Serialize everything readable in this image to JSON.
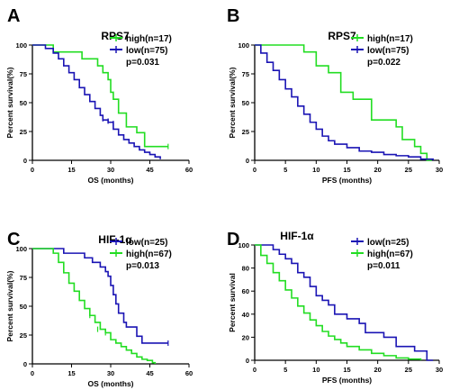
{
  "chart_data": [
    {
      "type": "line",
      "panel": "A",
      "title": "RPS7",
      "xlabel": "OS (months)",
      "ylabel": "Percent survival(%)",
      "xlim": [
        0,
        60
      ],
      "ylim": [
        0,
        100
      ],
      "xticks": [
        0,
        15,
        30,
        45,
        60
      ],
      "yticks": [
        0,
        25,
        50,
        75,
        100
      ],
      "legend": "top-right",
      "pvalue": "p=0.031",
      "series": [
        {
          "name": "high(n=17)",
          "color": "#22dd22",
          "x": [
            0,
            8,
            8,
            19,
            19,
            25,
            25,
            27,
            27,
            29,
            29,
            30,
            30,
            31,
            31,
            33,
            33,
            36,
            36,
            40,
            40,
            43,
            43,
            52
          ],
          "y": [
            100,
            100,
            94,
            94,
            88,
            88,
            82,
            82,
            76,
            76,
            70,
            70,
            59,
            59,
            53,
            53,
            41,
            41,
            29,
            29,
            24,
            24,
            12,
            12
          ],
          "censored": [
            [
              52,
              12
            ]
          ]
        },
        {
          "name": "low(n=75)",
          "color": "#1a14b4",
          "x": [
            0,
            5,
            8,
            10,
            12,
            14,
            16,
            18,
            20,
            22,
            24,
            26,
            27,
            29,
            31,
            33,
            35,
            37,
            39,
            41,
            43,
            45,
            47,
            49
          ],
          "y": [
            100,
            97,
            93,
            88,
            82,
            76,
            70,
            63,
            57,
            51,
            45,
            39,
            35,
            33,
            27,
            22,
            18,
            15,
            12,
            9,
            7,
            5,
            3,
            1
          ],
          "censored": [
            [
              27,
              36
            ],
            [
              29,
              34
            ],
            [
              31,
              32
            ]
          ]
        }
      ]
    },
    {
      "type": "line",
      "panel": "B",
      "title": "RPS7",
      "xlabel": "PFS (months)",
      "ylabel": "Percent survival(%)",
      "xlim": [
        0,
        30
      ],
      "ylim": [
        0,
        100
      ],
      "xticks": [
        0,
        5,
        10,
        15,
        20,
        25,
        30
      ],
      "yticks": [
        0,
        25,
        50,
        75,
        100
      ],
      "legend": "top-right",
      "pvalue": "p=0.022",
      "series": [
        {
          "name": "high(n=17)",
          "color": "#22dd22",
          "x": [
            0,
            8,
            8,
            10,
            10,
            12,
            12,
            14,
            14,
            16,
            16,
            19,
            19,
            23,
            23,
            24,
            24,
            26,
            26,
            27,
            27,
            28,
            28,
            28.8
          ],
          "y": [
            100,
            100,
            94,
            94,
            82,
            82,
            76,
            76,
            59,
            59,
            53,
            53,
            35,
            35,
            29,
            29,
            18,
            18,
            12,
            12,
            6,
            6,
            0,
            0
          ],
          "censored": []
        },
        {
          "name": "low(n=75)",
          "color": "#1a14b4",
          "x": [
            0,
            1,
            2,
            3,
            4,
            5,
            6,
            7,
            8,
            9,
            10,
            11,
            12,
            13,
            15,
            17,
            19,
            21,
            23,
            25,
            27,
            29
          ],
          "y": [
            100,
            93,
            85,
            78,
            70,
            62,
            55,
            47,
            40,
            33,
            27,
            21,
            17,
            14,
            11,
            8,
            7,
            5,
            4,
            3,
            1,
            0
          ],
          "censored": []
        }
      ]
    },
    {
      "type": "line",
      "panel": "C",
      "title": "HIF-1α",
      "xlabel": "OS (months)",
      "ylabel": "Percent survival(%)",
      "xlim": [
        0,
        60
      ],
      "ylim": [
        0,
        100
      ],
      "xticks": [
        0,
        15,
        30,
        45,
        60
      ],
      "yticks": [
        0,
        25,
        50,
        75,
        100
      ],
      "legend": "top-right",
      "pvalue": "p=0.013",
      "series": [
        {
          "name": "low(n=25)",
          "color": "#1a14b4",
          "x": [
            0,
            12,
            12,
            20,
            20,
            23,
            23,
            26,
            26,
            28,
            28,
            29,
            29,
            30,
            30,
            31,
            31,
            32,
            32,
            33,
            33,
            35,
            35,
            36,
            36,
            40,
            40,
            42,
            42,
            52
          ],
          "y": [
            100,
            100,
            96,
            96,
            92,
            92,
            88,
            88,
            84,
            84,
            80,
            80,
            76,
            76,
            68,
            68,
            60,
            60,
            52,
            52,
            44,
            44,
            36,
            36,
            32,
            32,
            24,
            24,
            18,
            18
          ],
          "censored": [
            [
              52,
              18
            ]
          ]
        },
        {
          "name": "high(n=67)",
          "color": "#22dd22",
          "x": [
            0,
            8,
            10,
            12,
            14,
            16,
            18,
            20,
            22,
            24,
            26,
            28,
            30,
            32,
            34,
            36,
            38,
            40,
            42,
            44,
            46,
            47
          ],
          "y": [
            100,
            96,
            88,
            79,
            70,
            63,
            55,
            48,
            42,
            36,
            30,
            27,
            21,
            18,
            15,
            12,
            9,
            6,
            4,
            3,
            1,
            0
          ],
          "censored": [
            [
              22,
              42
            ],
            [
              25,
              30
            ],
            [
              28,
              27
            ]
          ]
        }
      ]
    },
    {
      "type": "line",
      "panel": "D",
      "title": "HIF-1α",
      "xlabel": "PFS (months)",
      "ylabel": "Percent survival",
      "xlim": [
        0,
        30
      ],
      "ylim": [
        0,
        100
      ],
      "xticks": [
        0,
        5,
        10,
        15,
        20,
        25,
        30
      ],
      "yticks": [
        0,
        20,
        40,
        60,
        80,
        100
      ],
      "legend": "top-right",
      "pvalue": "p=0.011",
      "series": [
        {
          "name": "low(n=25)",
          "color": "#1a14b4",
          "x": [
            0,
            3,
            3,
            4,
            4,
            5,
            5,
            6,
            6,
            7,
            7,
            8,
            8,
            9,
            9,
            10,
            10,
            11,
            11,
            12,
            12,
            13,
            13,
            15,
            15,
            17,
            17,
            18,
            18,
            21,
            21,
            23,
            23,
            26,
            26,
            28,
            28,
            29
          ],
          "y": [
            100,
            100,
            96,
            96,
            92,
            92,
            88,
            88,
            84,
            84,
            76,
            76,
            72,
            72,
            64,
            64,
            56,
            56,
            52,
            52,
            48,
            48,
            40,
            40,
            36,
            36,
            32,
            32,
            24,
            24,
            20,
            20,
            12,
            12,
            8,
            8,
            0,
            0
          ],
          "censored": []
        },
        {
          "name": "high(n=67)",
          "color": "#22dd22",
          "x": [
            0,
            1,
            2,
            3,
            4,
            5,
            6,
            7,
            8,
            9,
            10,
            11,
            12,
            13,
            14,
            15,
            17,
            19,
            21,
            23,
            25,
            27
          ],
          "y": [
            100,
            91,
            84,
            76,
            69,
            61,
            54,
            47,
            41,
            35,
            30,
            25,
            21,
            18,
            15,
            12,
            9,
            6,
            4,
            2,
            1,
            0
          ],
          "censored": []
        }
      ]
    }
  ],
  "panel_letters": [
    "A",
    "B",
    "C",
    "D"
  ]
}
